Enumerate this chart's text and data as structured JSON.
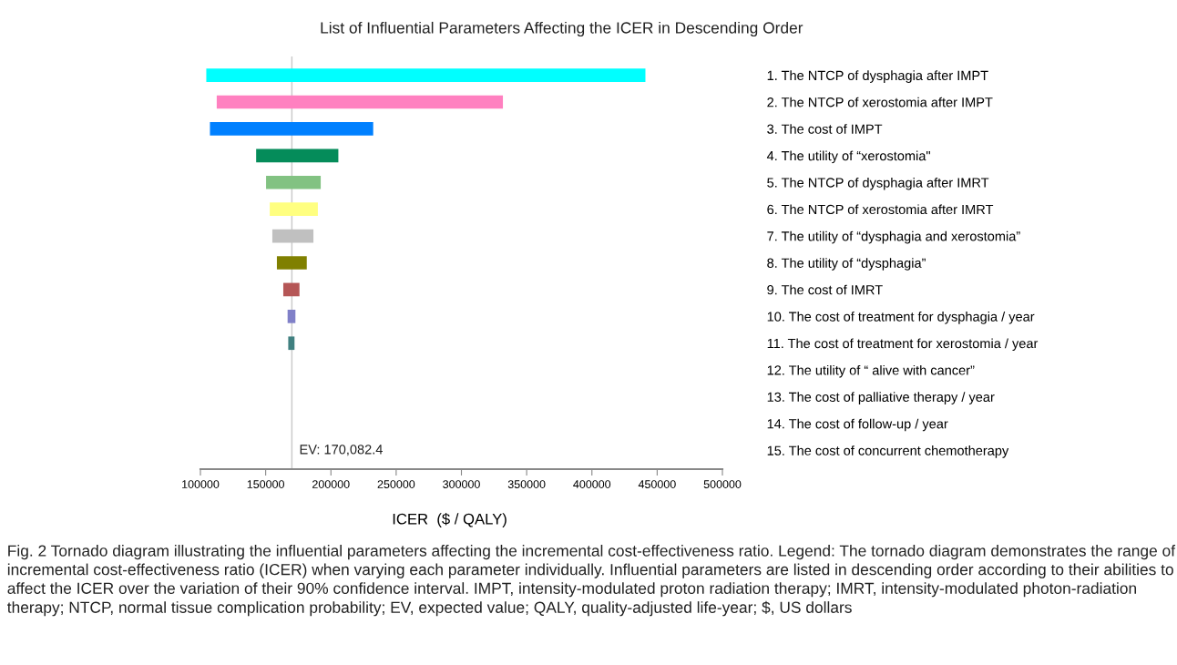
{
  "chart_data": {
    "type": "bar",
    "orientation": "horizontal",
    "title": "List of Influential Parameters Affecting the ICER in Descending Order",
    "xlabel": "ICER  ($ / QALY)",
    "categories": [
      "1. The NTCP of dysphagia after IMPT",
      "2. The NTCP of xerostomia after IMPT",
      "3. The cost of IMPT",
      "4. The utility of “xerostomia\"",
      "5. The NTCP of dysphagia after IMRT",
      "6. The NTCP of xerostomia after IMRT",
      "7. The utility of “dysphagia and xerostomia”",
      "8. The utility of “dysphagia”",
      "9. The cost of IMRT",
      "10. The cost of treatment for dysphagia / year",
      "11. The cost of treatment for xerostomia / year",
      "12. The utility of “ alive with cancer”",
      "13. The cost of palliative therapy / year",
      "14. The cost of follow-up / year",
      "15. The cost of concurrent chemotherapy"
    ],
    "base": [
      104500,
      112500,
      107300,
      142700,
      150300,
      153100,
      155100,
      158600,
      163500,
      166800,
      167300,
      null,
      null,
      null,
      null
    ],
    "values": [
      336500,
      219300,
      125100,
      63000,
      41900,
      36900,
      31500,
      22900,
      12400,
      6000,
      4800,
      null,
      null,
      null,
      null
    ],
    "colors": [
      "#00ffff",
      "#ff80c0",
      "#0080ff",
      "#058c5a",
      "#82c282",
      "#ffff80",
      "#c0c0c0",
      "#808000",
      "#b55656",
      "#8080c8",
      "#408080",
      null,
      null,
      null,
      null
    ],
    "xlim": [
      100000,
      500000
    ],
    "xticks": [
      100000,
      150000,
      200000,
      250000,
      300000,
      350000,
      400000,
      450000,
      500000
    ],
    "ref_lines": [
      {
        "axis": "x",
        "value": 170082.4,
        "label": "EV: 170,082.4",
        "color": "#c8c8c8"
      }
    ],
    "grid": false,
    "annotations": [
      "Fig. 2 Tornado diagram illustrating the influential parameters affecting the incremental cost-effectiveness ratio. Legend: The tornado diagram demonstrates the range of incremental cost-effectiveness ratio (ICER) when varying each parameter individually. Influential parameters are listed in descending order according to their abilities to affect the ICER over the variation of their 90% confidence interval. IMPT, intensity-modulated proton radiation therapy; IMRT, intensity-modulated photon-radiation therapy; NTCP, normal tissue complication probability; EV, expected value; QALY, quality-adjusted life-year; $, US dollars"
    ]
  }
}
